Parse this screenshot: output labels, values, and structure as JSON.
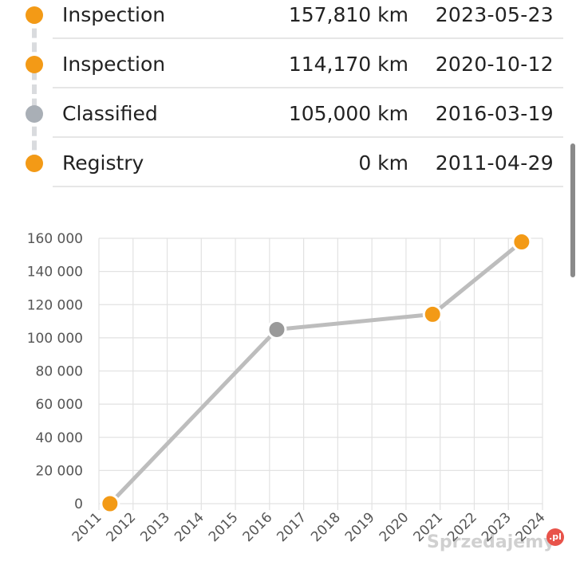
{
  "colors": {
    "inspection": "#f39a16",
    "classified": "#a9afb6",
    "chart_line": "#bdbdbd",
    "grid": "#e2e2e2"
  },
  "timeline": [
    {
      "label": "Inspection",
      "km": "157,810 km",
      "date": "2023-05-23",
      "kind": "inspection"
    },
    {
      "label": "Inspection",
      "km": "114,170 km",
      "date": "2020-10-12",
      "kind": "inspection"
    },
    {
      "label": "Classified",
      "km": "105,000 km",
      "date": "2016-03-19",
      "kind": "classified"
    },
    {
      "label": "Registry",
      "km": "0 km",
      "date": "2011-04-29",
      "kind": "inspection"
    }
  ],
  "watermark": {
    "text": "Sprzedajemy",
    "badge": ".pl"
  },
  "chart_data": {
    "type": "line",
    "ylim": [
      0,
      160000
    ],
    "xlim": [
      2011,
      2024
    ],
    "yticks": [
      0,
      20000,
      40000,
      60000,
      80000,
      100000,
      120000,
      140000,
      160000
    ],
    "ytick_labels": [
      "0",
      "20 000",
      "40 000",
      "60 000",
      "80 000",
      "100 000",
      "120 000",
      "140 000",
      "160 000"
    ],
    "xticks": [
      2011,
      2012,
      2013,
      2014,
      2015,
      2016,
      2017,
      2018,
      2019,
      2020,
      2021,
      2022,
      2023,
      2024
    ],
    "xtick_labels": [
      "2011",
      "2012",
      "2013",
      "2014",
      "2015",
      "2016",
      "2017",
      "2018",
      "2019",
      "2020",
      "2021",
      "2022",
      "2023",
      "2024"
    ],
    "grid": true,
    "points": [
      {
        "x": "2011-04-29",
        "y": 0,
        "kind": "inspection"
      },
      {
        "x": "2016-03-19",
        "y": 105000,
        "kind": "classified"
      },
      {
        "x": "2020-10-12",
        "y": 114170,
        "kind": "inspection"
      },
      {
        "x": "2023-05-23",
        "y": 157810,
        "kind": "inspection"
      }
    ]
  }
}
